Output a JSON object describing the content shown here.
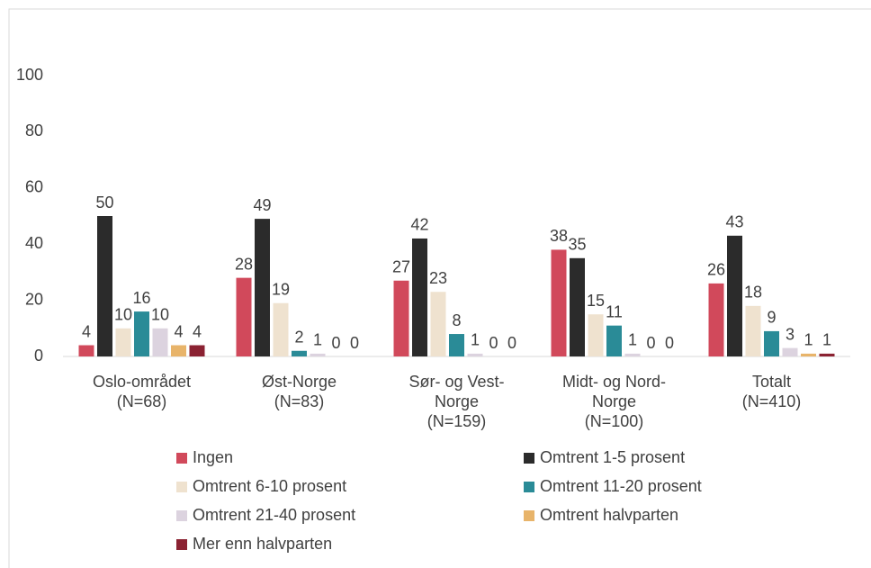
{
  "chart_data": {
    "type": "bar",
    "categories": [
      "Oslo-området\n(N=68)",
      "Øst-Norge\n(N=83)",
      "Sør- og Vest-\nNorge\n(N=159)",
      "Midt- og Nord-\nNorge\n(N=100)",
      "Totalt\n(N=410)"
    ],
    "series": [
      {
        "name": "Ingen",
        "color": "#d1495b",
        "values": [
          4,
          28,
          27,
          38,
          26
        ]
      },
      {
        "name": "Omtrent 1-5 prosent",
        "color": "#2b2b2b",
        "values": [
          50,
          49,
          42,
          35,
          43
        ]
      },
      {
        "name": "Omtrent 6-10 prosent",
        "color": "#efe2cf",
        "values": [
          10,
          19,
          23,
          15,
          18
        ]
      },
      {
        "name": "Omtrent 11-20 prosent",
        "color": "#2a8b97",
        "values": [
          16,
          2,
          8,
          11,
          9
        ]
      },
      {
        "name": "Omtrent 21-40 prosent",
        "color": "#dcd3df",
        "values": [
          10,
          1,
          1,
          1,
          3
        ]
      },
      {
        "name": "Omtrent halvparten",
        "color": "#e8b46a",
        "values": [
          4,
          0,
          0,
          0,
          1
        ]
      },
      {
        "name": "Mer enn halvparten",
        "color": "#8b2232",
        "values": [
          4,
          0,
          0,
          0,
          1
        ]
      }
    ],
    "ylim": [
      0,
      100
    ],
    "yticks": [
      0,
      20,
      40,
      60,
      80,
      100
    ],
    "grid": false,
    "legend": "bottom"
  }
}
